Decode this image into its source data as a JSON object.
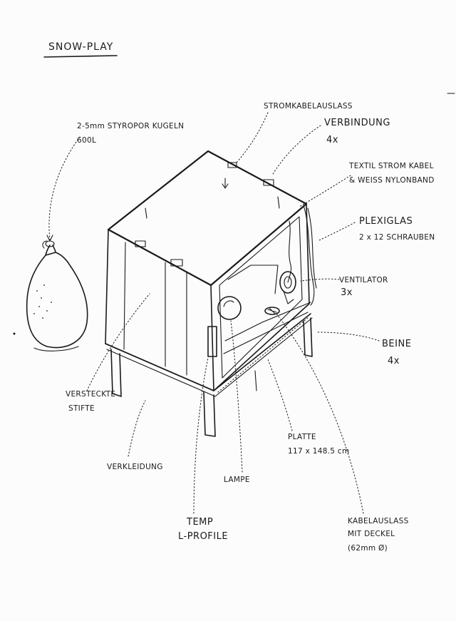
{
  "title": "SNOW-PLAY",
  "labels": {
    "stromkabelauslass": "STROMKABELAUSLASS",
    "verbindung": "VERBINDUNG",
    "verbindung_count": "4x",
    "styropor": "2-5mm STYROPOR KUGELN",
    "styropor_amount": "600L",
    "textil_1": "TEXTIL STROM KABEL",
    "textil_2": "& WEISS NYLONBAND",
    "plexiglas_1": "PLEXIGLAS",
    "plexiglas_2": "2 x 12 SCHRAUBEN",
    "ventilator": "VENTILATOR",
    "ventilator_count": "3x",
    "beine": "BEINE",
    "beine_count": "4x",
    "versteckte_1": "VERSTECKTE",
    "versteckte_2": "STIFTE",
    "verkleidung": "VERKLEIDUNG",
    "platte_1": "PLATTE",
    "platte_2": "117 x 148.5 cm",
    "lampe": "LAMPE",
    "temp_1": "TEMP",
    "temp_2": "L-PROFILE",
    "kabel_1": "KABELAUSLASS",
    "kabel_2": "MIT DECKEL",
    "kabel_3": "(62mm Ø)"
  }
}
